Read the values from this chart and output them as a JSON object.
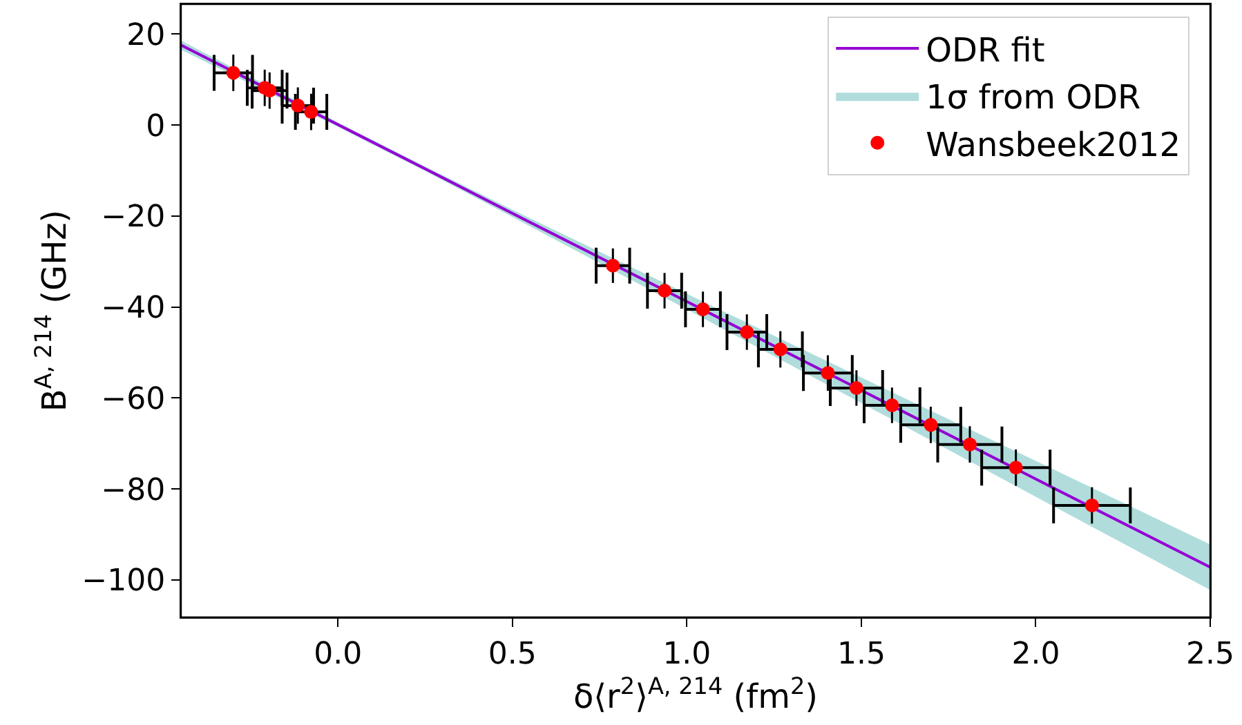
{
  "chart_data": {
    "type": "scatter",
    "xlabel": "δ⟨r$^{2}$⟩$^{A, 214}$ (fm$^{2}$)",
    "ylabel": "B$^{A, 214}$ (GHz)",
    "xlim": [
      -0.45,
      2.5
    ],
    "ylim": [
      -108.2,
      26.6
    ],
    "xticks": [
      {
        "value": 0,
        "label": "0.0"
      },
      {
        "value": 0.5,
        "label": "0.5"
      },
      {
        "value": 1,
        "label": "1.0"
      },
      {
        "value": 1.5,
        "label": "1.5"
      },
      {
        "value": 2,
        "label": "2.0"
      },
      {
        "value": 2.5,
        "label": "2.5"
      }
    ],
    "yticks": [
      {
        "value": -100,
        "label": "−100"
      },
      {
        "value": -80,
        "label": "−80"
      },
      {
        "value": -60,
        "label": "−60"
      },
      {
        "value": -40,
        "label": "−40"
      },
      {
        "value": -20,
        "label": "−20"
      },
      0,
      20
    ],
    "legend": "top right",
    "series": [
      {
        "type": "line",
        "name": "ODR fit",
        "color": "#9400d3",
        "line_style": "solid",
        "marker": "none",
        "x": [
          -0.45,
          0,
          0.25,
          0.5,
          1.0,
          1.5,
          2.0,
          2.5
        ],
        "values": [
          17.6,
          0.1,
          -9.6,
          -19.4,
          -38.8,
          -58.3,
          -77.8,
          -97.2
        ],
        "lower": [
          16.6,
          -0.4,
          -10.1,
          -20.2,
          -40.5,
          -61.1,
          -81.7,
          -102.2
        ],
        "upper": [
          18.6,
          0.6,
          -9.1,
          -18.6,
          -37.1,
          -55.5,
          -73.8,
          -92.2
        ]
      },
      {
        "type": "area",
        "name": "1σ from ODR",
        "color": "#b0dcdc"
      },
      {
        "name": "Wansbeek2012",
        "color": "#ff0000",
        "marker": "circle",
        "x": [
          -0.3,
          -0.21,
          -0.196,
          -0.115,
          -0.077,
          0.788,
          0.936,
          1.046,
          1.172,
          1.268,
          1.404,
          1.486,
          1.588,
          1.699,
          1.811,
          1.943,
          2.161
        ],
        "values": [
          11.5,
          8.2,
          7.6,
          4.3,
          2.9,
          -30.9,
          -36.4,
          -40.5,
          -45.5,
          -49.3,
          -54.5,
          -57.8,
          -61.6,
          -65.9,
          -70.2,
          -75.3,
          -83.6
        ],
        "errors": [
          4,
          4,
          4,
          4,
          4,
          3.8,
          3.9,
          3.9,
          3.9,
          4,
          3.9,
          3.9,
          3.9,
          4,
          4,
          4,
          4
        ],
        "xerrors": [
          0.055,
          0.05,
          0.05,
          0.045,
          0.045,
          0.048,
          0.049,
          0.05,
          0.057,
          0.063,
          0.07,
          0.075,
          0.08,
          0.086,
          0.092,
          0.098,
          0.11
        ]
      }
    ]
  }
}
